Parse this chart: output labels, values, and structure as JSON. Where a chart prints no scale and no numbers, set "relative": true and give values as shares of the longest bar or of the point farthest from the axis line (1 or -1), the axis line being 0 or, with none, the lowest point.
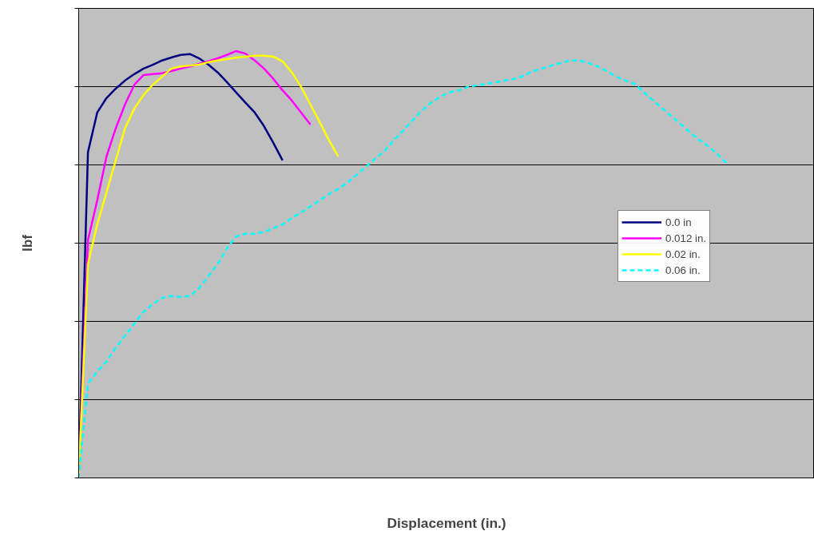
{
  "chart_data": {
    "type": "line",
    "relative": true,
    "xlabel": "Displacement (in.)",
    "ylabel": "lbf",
    "grid": "y",
    "legend": "right",
    "line_style": "solid",
    "categories": [
      null,
      null,
      null,
      null,
      null,
      null,
      null,
      null,
      null,
      null,
      null,
      null,
      null,
      null,
      null,
      null,
      null,
      null,
      null,
      null,
      null,
      null,
      null,
      null,
      null,
      null,
      null,
      null,
      null,
      null,
      null,
      null,
      null,
      null,
      null,
      null,
      null,
      null,
      null,
      null,
      null,
      null,
      null,
      null,
      null,
      null,
      null,
      null,
      null,
      null,
      null,
      null,
      null,
      null,
      null,
      null,
      null,
      null,
      null,
      null,
      null,
      null,
      null,
      null,
      null,
      null,
      null,
      null,
      null,
      null,
      null
    ],
    "series": [
      {
        "name": "0.0 in",
        "color": "#000080",
        "values": [
          0,
          0.763,
          0.856,
          0.89,
          0.912,
          0.931,
          0.946,
          0.959,
          0.968,
          0.978,
          0.985,
          0.991,
          0.993,
          0.983,
          0.968,
          0.95,
          0.927,
          0.903,
          0.879,
          0.856,
          0.824,
          0.785,
          0.744,
          null,
          null,
          null,
          null,
          null,
          null,
          null,
          null,
          null,
          null,
          null,
          null,
          null,
          null,
          null,
          null,
          null,
          null,
          null,
          null,
          null,
          null,
          null,
          null,
          null,
          null,
          null,
          null,
          null,
          null,
          null,
          null,
          null,
          null,
          null,
          null,
          null,
          null,
          null,
          null,
          null,
          null,
          null,
          null,
          null,
          null,
          null,
          null
        ]
      },
      {
        "name": "0.012 in.",
        "color": "#ff00ff",
        "values": [
          0,
          0.557,
          0.65,
          0.753,
          0.819,
          0.875,
          0.921,
          0.944,
          0.946,
          0.948,
          0.953,
          0.959,
          0.964,
          0.97,
          0.976,
          0.983,
          0.991,
          1,
          0.994,
          0.978,
          0.959,
          0.935,
          0.908,
          0.884,
          0.856,
          0.828,
          null,
          null,
          null,
          null,
          null,
          null,
          null,
          null,
          null,
          null,
          null,
          null,
          null,
          null,
          null,
          null,
          null,
          null,
          null,
          null,
          null,
          null,
          null,
          null,
          null,
          null,
          null,
          null,
          null,
          null,
          null,
          null,
          null,
          null,
          null,
          null,
          null,
          null,
          null,
          null,
          null,
          null,
          null,
          null,
          null
        ]
      },
      {
        "name": "0.02 in.",
        "color": "#ffff00",
        "values": [
          0,
          0.501,
          0.594,
          0.669,
          0.744,
          0.819,
          0.865,
          0.897,
          0.921,
          0.94,
          0.959,
          0.964,
          0.966,
          0.968,
          0.974,
          0.978,
          0.981,
          0.985,
          0.987,
          0.989,
          0.989,
          0.987,
          0.976,
          0.95,
          0.916,
          0.875,
          0.834,
          0.791,
          0.753,
          null,
          null,
          null,
          null,
          null,
          null,
          null,
          null,
          null,
          null,
          null,
          null,
          null,
          null,
          null,
          null,
          null,
          null,
          null,
          null,
          null,
          null,
          null,
          null,
          null,
          null,
          null,
          null,
          null,
          null,
          null,
          null,
          null,
          null,
          null,
          null,
          null,
          null,
          null,
          null,
          null,
          null
        ]
      },
      {
        "name": "0.06 in.",
        "color": "#00ffff",
        "line_style": "dashed",
        "values": [
          0,
          0.221,
          0.249,
          0.273,
          0.305,
          0.333,
          0.361,
          0.389,
          0.407,
          0.422,
          0.426,
          0.424,
          0.426,
          0.445,
          0.473,
          0.501,
          0.538,
          0.566,
          0.572,
          0.572,
          0.576,
          0.585,
          0.594,
          0.609,
          0.622,
          0.636,
          0.65,
          0.665,
          0.677,
          0.692,
          0.71,
          0.729,
          0.748,
          0.766,
          0.791,
          0.813,
          0.837,
          0.86,
          0.879,
          0.893,
          0.903,
          0.908,
          0.916,
          0.92,
          0.923,
          0.927,
          0.931,
          0.935,
          0.942,
          0.953,
          0.959,
          0.966,
          0.972,
          0.978,
          0.978,
          0.972,
          0.964,
          0.953,
          0.94,
          0.931,
          0.923,
          0.903,
          0.884,
          0.865,
          0.847,
          0.828,
          0.809,
          0.791,
          0.776,
          0.757,
          0.735
        ]
      }
    ]
  }
}
